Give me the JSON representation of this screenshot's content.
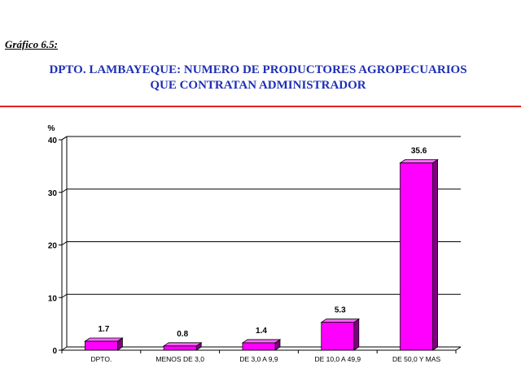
{
  "header": {
    "caption": "Gráfico 6.5:",
    "title_line1": "DPTO. LAMBAYEQUE: NUMERO DE PRODUCTORES AGROPECUARIOS",
    "title_line2": "QUE CONTRATAN ADMINISTRADOR"
  },
  "colors": {
    "title": "#1f2fb5",
    "rule": "#e02020",
    "bar_front": "#ff00ff",
    "bar_top": "#ff66ff",
    "bar_side": "#800080"
  },
  "chart_data": {
    "type": "bar",
    "title": "DPTO. LAMBAYEQUE: NUMERO DE PRODUCTORES AGROPECUARIOS QUE CONTRATAN ADMINISTRADOR",
    "ylabel": "%",
    "xlabel": "",
    "categories": [
      "DPTO.",
      "MENOS DE 3,0",
      "DE 3,0 A 9,9",
      "DE 10,0 A 49,9",
      "DE 50,0 Y MAS"
    ],
    "values": [
      1.7,
      0.8,
      1.4,
      5.3,
      35.6
    ],
    "value_labels": [
      "1.7",
      "0.8",
      "1.4",
      "5.3",
      "35.6"
    ],
    "ylim": [
      0,
      40
    ],
    "yticks": [
      0,
      10,
      20,
      30,
      40
    ],
    "grid": true,
    "legend": "none"
  }
}
